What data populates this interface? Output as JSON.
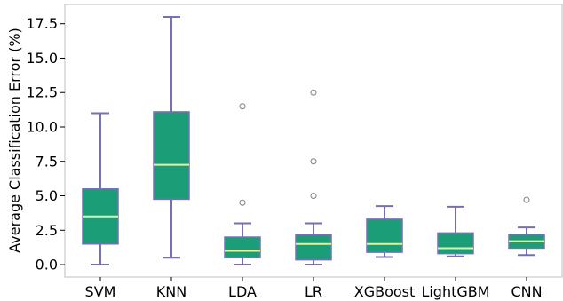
{
  "chart_data": {
    "type": "box",
    "title": "",
    "xlabel": "",
    "ylabel": "Average Classification Error (%)",
    "ylim": [
      -0.9,
      18.9
    ],
    "yticks": [
      0.0,
      2.5,
      5.0,
      7.5,
      10.0,
      12.5,
      15.0,
      17.5
    ],
    "ytick_labels": [
      "0.0",
      "2.5",
      "5.0",
      "7.5",
      "10.0",
      "12.5",
      "15.0",
      "17.5"
    ],
    "grid": false,
    "colors": {
      "box_fill": "#1b9e77",
      "box_edge": "#7570b3",
      "median": "#e6f598",
      "whisker": "#7570b3",
      "outlier": "#808080"
    },
    "boxes": [
      {
        "category": "SVM",
        "whisker_low": 0.0,
        "q1": 1.5,
        "median": 3.5,
        "q3": 5.5,
        "whisker_high": 11.0,
        "outliers": []
      },
      {
        "category": "KNN",
        "whisker_low": 0.5,
        "q1": 4.75,
        "median": 7.25,
        "q3": 11.1,
        "whisker_high": 18.0,
        "outliers": []
      },
      {
        "category": "LDA",
        "whisker_low": 0.0,
        "q1": 0.5,
        "median": 1.0,
        "q3": 2.0,
        "whisker_high": 3.0,
        "outliers": [
          4.5,
          11.5
        ]
      },
      {
        "category": "LR",
        "whisker_low": 0.0,
        "q1": 0.35,
        "median": 1.5,
        "q3": 2.15,
        "whisker_high": 3.0,
        "outliers": [
          5.0,
          7.5,
          12.5
        ]
      },
      {
        "category": "XGBoost",
        "whisker_low": 0.55,
        "q1": 0.9,
        "median": 1.5,
        "q3": 3.3,
        "whisker_high": 4.25,
        "outliers": []
      },
      {
        "category": "LightGBM",
        "whisker_low": 0.6,
        "q1": 0.8,
        "median": 1.2,
        "q3": 2.3,
        "whisker_high": 4.2,
        "outliers": []
      },
      {
        "category": "CNN",
        "whisker_low": 0.7,
        "q1": 1.2,
        "median": 1.7,
        "q3": 2.2,
        "whisker_high": 2.7,
        "outliers": [
          4.7
        ]
      }
    ]
  }
}
